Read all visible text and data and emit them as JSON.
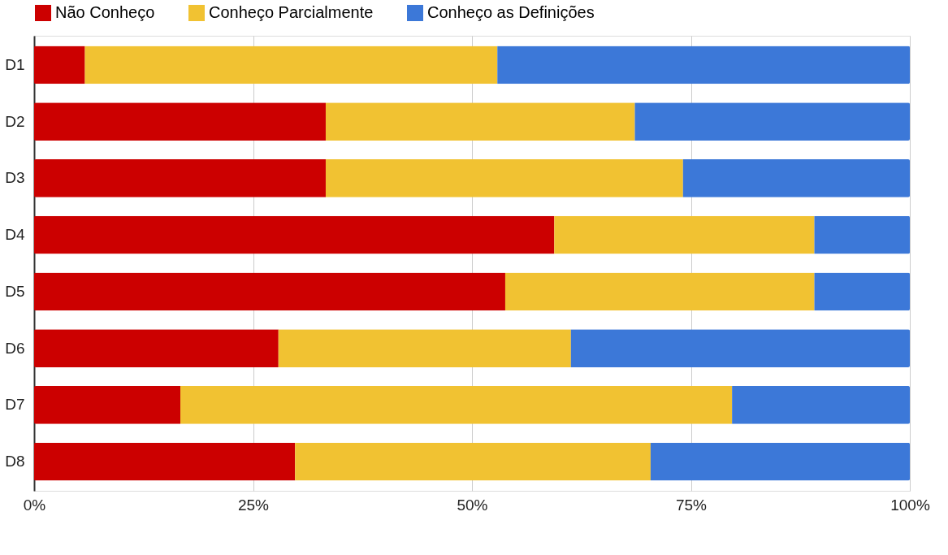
{
  "chart_data": {
    "type": "bar",
    "orientation": "horizontal",
    "stacked": true,
    "categories": [
      "D1",
      "D2",
      "D3",
      "D4",
      "D5",
      "D6",
      "D7",
      "D8"
    ],
    "series": [
      {
        "name": "Não Conheço",
        "color": "#cc0000",
        "values": [
          5.8,
          33.3,
          33.3,
          59.4,
          53.8,
          27.9,
          16.7,
          29.8
        ]
      },
      {
        "name": "Conheço Parcialmente",
        "color": "#f1c232",
        "values": [
          47.1,
          35.3,
          40.8,
          29.7,
          35.3,
          33.4,
          63.0,
          40.6
        ]
      },
      {
        "name": "Conheço as Definições",
        "color": "#3c78d8",
        "values": [
          47.1,
          31.4,
          25.9,
          10.9,
          10.9,
          38.7,
          20.3,
          29.6
        ]
      }
    ],
    "xlim": [
      0,
      100
    ],
    "xticks": [
      {
        "value": 0,
        "label": "0%"
      },
      {
        "value": 25,
        "label": "25%"
      },
      {
        "value": 50,
        "label": "50%"
      },
      {
        "value": 75,
        "label": "75%"
      },
      {
        "value": 100,
        "label": "100%"
      }
    ],
    "grid": "x",
    "legend": "top"
  }
}
